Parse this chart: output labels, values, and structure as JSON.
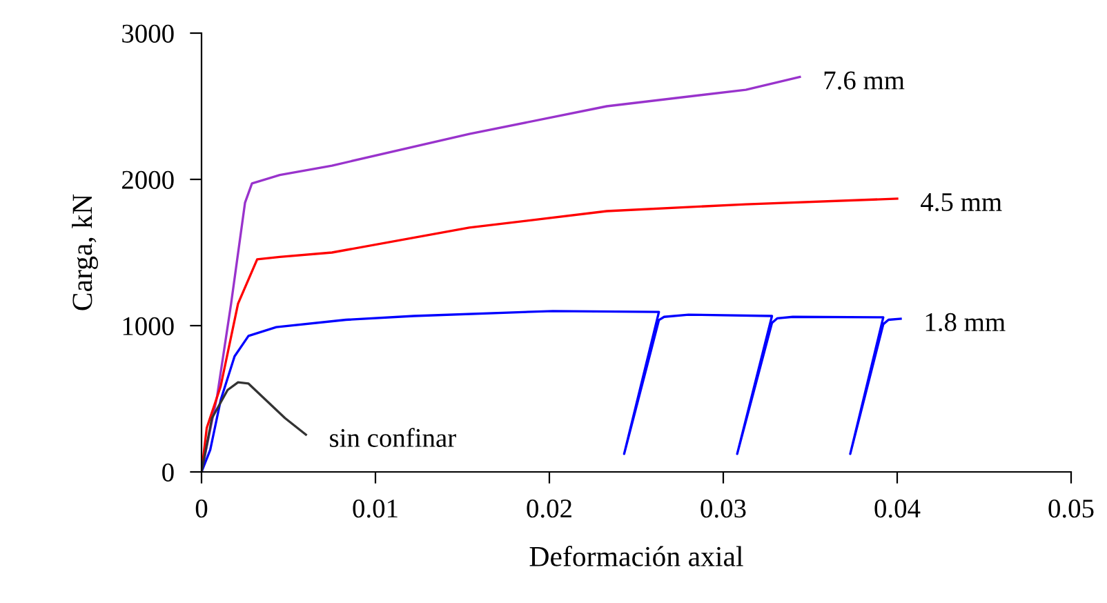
{
  "chart_data": {
    "type": "line",
    "xlabel": "Deformación axial",
    "ylabel": "Carga, kN",
    "xlim": [
      0,
      0.05
    ],
    "ylim": [
      0,
      3000
    ],
    "xticks": [
      0,
      0.01,
      0.02,
      0.03,
      0.04,
      0.05
    ],
    "yticks": [
      0,
      1000,
      2000,
      3000
    ],
    "grid": false,
    "legend": false,
    "marker": "none",
    "line_style": "solid",
    "series": [
      {
        "name": "7.6 mm",
        "color": "#9933cc",
        "x": [
          0,
          0.0009,
          0.0017,
          0.0025,
          0.0029,
          0.0045,
          0.0075,
          0.0154,
          0.0233,
          0.0313,
          0.0344
        ],
        "values": [
          0,
          520,
          1150,
          1840,
          1972,
          2030,
          2094,
          2311,
          2500,
          2613,
          2700
        ]
      },
      {
        "name": "4.5 mm",
        "color": "#ff0000",
        "x": [
          0,
          0.0003,
          0.0011,
          0.0021,
          0.0032,
          0.0045,
          0.0075,
          0.0154,
          0.0233,
          0.0313,
          0.04
        ],
        "values": [
          0,
          300,
          585,
          1150,
          1453,
          1470,
          1500,
          1670,
          1783,
          1830,
          1868
        ]
      },
      {
        "name": "1.8 mm",
        "color": "#0000ff",
        "x": [
          0,
          0.0005,
          0.0011,
          0.0019,
          0.0027,
          0.0043,
          0.0083,
          0.0122,
          0.0202,
          0.0263,
          0.0243,
          0.0263,
          0.0266,
          0.028,
          0.0328,
          0.0308,
          0.0328,
          0.0331,
          0.034,
          0.0392,
          0.0373,
          0.0392,
          0.0395,
          0.0402
        ],
        "values": [
          0,
          150,
          490,
          790,
          930,
          990,
          1040,
          1066,
          1100,
          1094,
          123,
          1038,
          1060,
          1075,
          1066,
          123,
          1019,
          1050,
          1060,
          1057,
          123,
          1010,
          1040,
          1047
        ]
      },
      {
        "name": "sin confinar",
        "color": "#333333",
        "x": [
          0,
          0.0006,
          0.0015,
          0.0021,
          0.0027,
          0.0048,
          0.006
        ],
        "values": [
          0,
          368,
          560,
          613,
          604,
          368,
          255
        ]
      }
    ]
  }
}
